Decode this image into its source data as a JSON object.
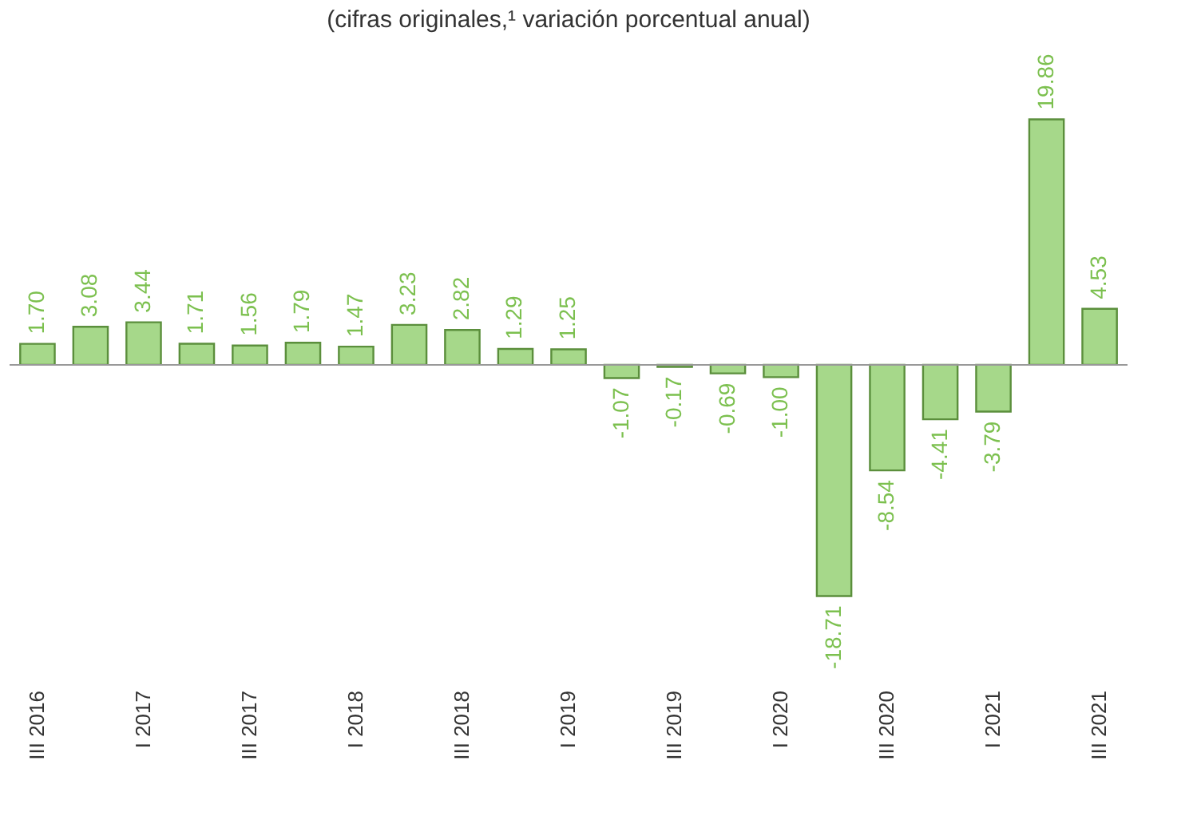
{
  "chart_data": {
    "type": "bar",
    "subtitle": "(cifras originales,¹ variación porcentual anual)",
    "categories": [
      "III 2016",
      null,
      "I 2017",
      null,
      "III 2017",
      null,
      "I 2018",
      null,
      "III 2018",
      null,
      "I 2019",
      null,
      "III 2019",
      null,
      "I 2020",
      null,
      "III 2020",
      null,
      "I 2021",
      null,
      "III 2021"
    ],
    "values": [
      1.7,
      3.08,
      3.44,
      1.71,
      1.56,
      1.79,
      1.47,
      3.23,
      2.82,
      1.29,
      1.25,
      -1.07,
      -0.17,
      -0.69,
      -1.0,
      -18.71,
      -8.54,
      -4.41,
      -3.79,
      19.86,
      4.53
    ],
    "value_labels": [
      "1.70",
      "3.08",
      "3.44",
      "1.71",
      "1.56",
      "1.79",
      "1.47",
      "3.23",
      "2.82",
      "1.29",
      "1.25",
      "-1.07",
      "-0.17",
      "-0.69",
      "-1.00",
      "-18.71",
      "-8.54",
      "-4.41",
      "-3.79",
      "19.86",
      "4.53"
    ],
    "color": "#a6d88a"
  }
}
